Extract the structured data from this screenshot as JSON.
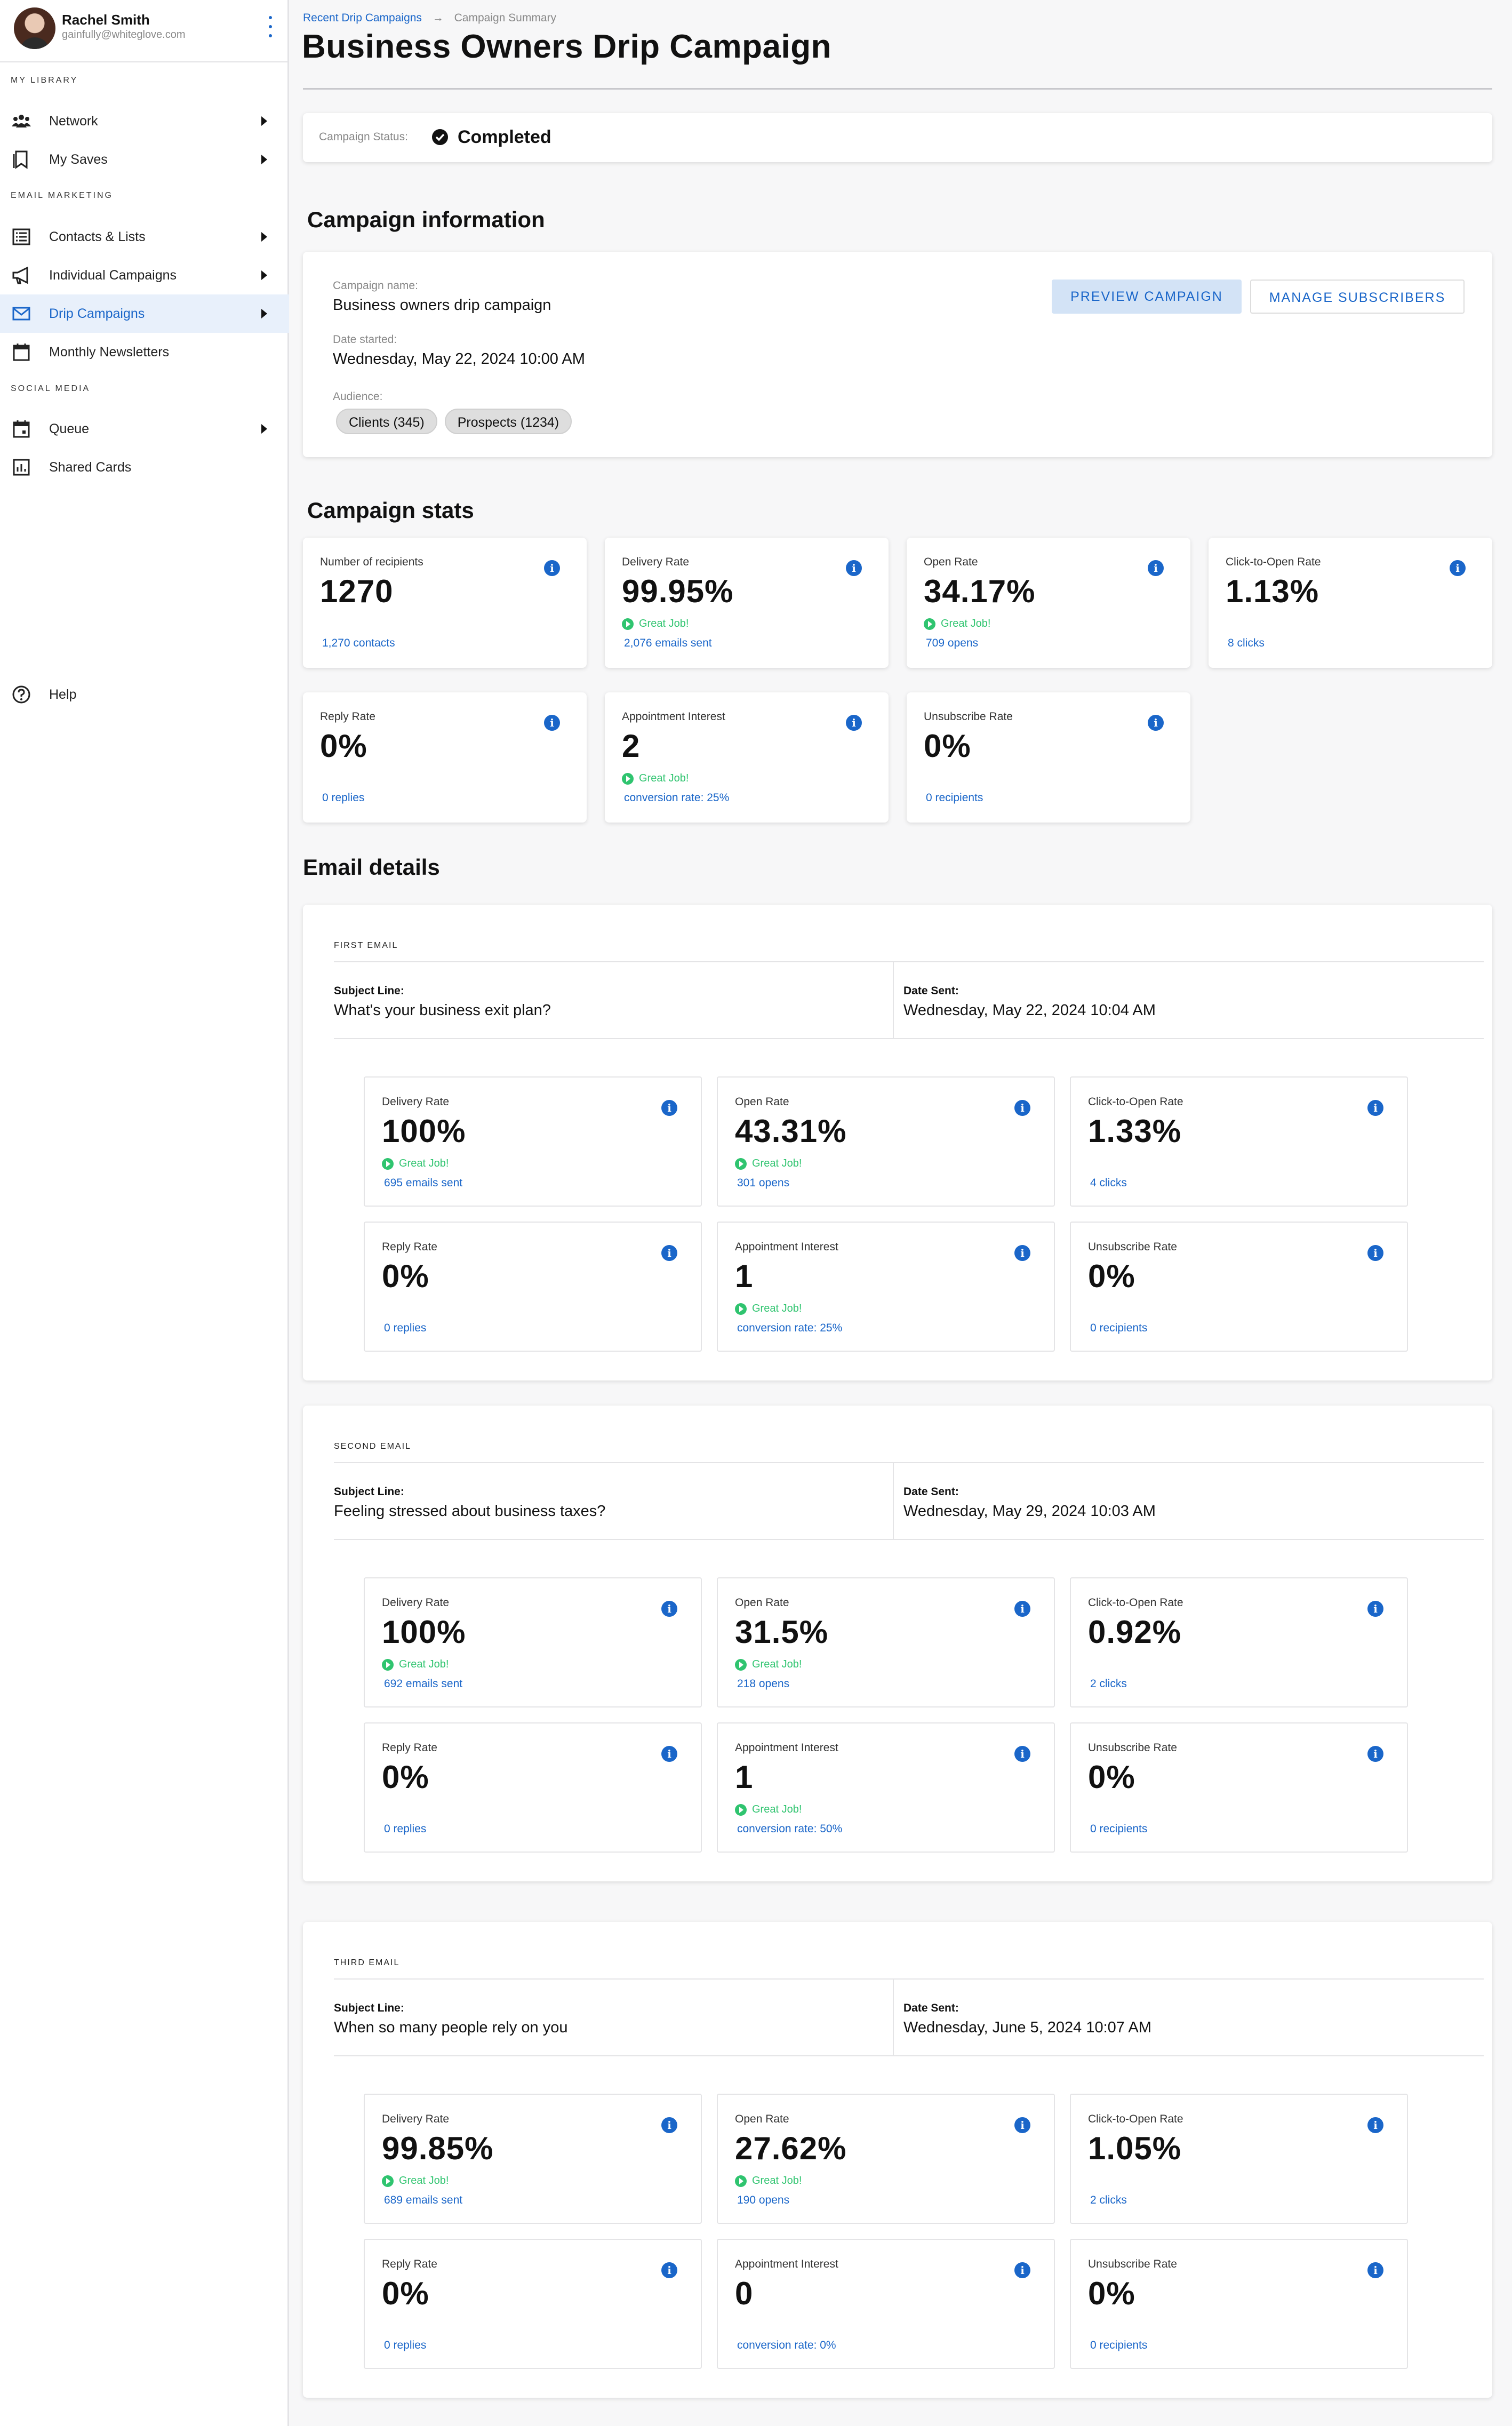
{
  "user": {
    "name": "Rachel Smith",
    "email": "gainfully@whiteglove.com"
  },
  "sidebar": {
    "sections": [
      "MY LIBRARY",
      "EMAIL MARKETING",
      "SOCIAL MEDIA"
    ],
    "items": [
      {
        "label": "Network",
        "icon": "network-icon",
        "has_arrow": true
      },
      {
        "label": "My Saves",
        "icon": "bookmark-icon",
        "has_arrow": true
      },
      {
        "label": "Contacts & Lists",
        "icon": "list-icon",
        "has_arrow": true
      },
      {
        "label": "Individual Campaigns",
        "icon": "megaphone-icon",
        "has_arrow": true
      },
      {
        "label": "Drip Campaigns",
        "icon": "mail-icon",
        "has_arrow": true,
        "active": true
      },
      {
        "label": "Monthly Newsletters",
        "icon": "calendar-icon",
        "has_arrow": false
      },
      {
        "label": "Queue",
        "icon": "calendar-icon",
        "has_arrow": true
      },
      {
        "label": "Shared Cards",
        "icon": "chart-icon",
        "has_arrow": false
      }
    ],
    "help": "Help"
  },
  "breadcrumb": {
    "parent": "Recent Drip Campaigns",
    "separator": "→",
    "current": "Campaign Summary"
  },
  "title": "Business Owners Drip Campaign",
  "status": {
    "label": "Campaign Status:",
    "value": "Completed"
  },
  "info_section": {
    "heading": "Campaign information",
    "name_label": "Campaign name:",
    "name": "Business owners drip campaign",
    "date_label": "Date started:",
    "date": "Wednesday, May 22, 2024 10:00 AM",
    "audience_label": "Audience:",
    "audience": [
      "Clients (345)",
      "Prospects (1234)"
    ],
    "preview_button": "PREVIEW CAMPAIGN",
    "manage_button": "MANAGE SUBSCRIBERS"
  },
  "stats_section": {
    "heading": "Campaign stats",
    "cards": [
      {
        "label": "Number of recipients",
        "value": "1270",
        "great": "",
        "link": "1,270 contacts"
      },
      {
        "label": "Delivery Rate",
        "value": "99.95%",
        "great": "Great Job!",
        "link": "2,076 emails sent"
      },
      {
        "label": "Open Rate",
        "value": "34.17%",
        "great": "Great Job!",
        "link": "709 opens"
      },
      {
        "label": "Click-to-Open Rate",
        "value": "1.13%",
        "great": "",
        "link": "8 clicks"
      },
      {
        "label": "Reply Rate",
        "value": "0%",
        "great": "",
        "link": "0 replies"
      },
      {
        "label": "Appointment Interest",
        "value": "2",
        "great": "Great Job!",
        "link": "conversion rate: 25%"
      },
      {
        "label": "Unsubscribe Rate",
        "value": "0%",
        "great": "",
        "link": "0 recipients"
      }
    ]
  },
  "email_details": {
    "heading": "Email details",
    "subject_label": "Subject Line:",
    "date_label": "Date Sent:",
    "emails": [
      {
        "title": "FIRST EMAIL",
        "subject": "What's your business exit plan?",
        "date": "Wednesday, May 22, 2024 10:04 AM",
        "stats": [
          {
            "label": "Delivery Rate",
            "value": "100%",
            "great": "Great Job!",
            "link": "695 emails sent"
          },
          {
            "label": "Open Rate",
            "value": "43.31%",
            "great": "Great Job!",
            "link": "301 opens"
          },
          {
            "label": "Click-to-Open Rate",
            "value": "1.33%",
            "great": "",
            "link": "4 clicks"
          },
          {
            "label": "Reply Rate",
            "value": "0%",
            "great": "",
            "link": "0 replies"
          },
          {
            "label": "Appointment Interest",
            "value": "1",
            "great": "Great Job!",
            "link": "conversion rate: 25%"
          },
          {
            "label": "Unsubscribe Rate",
            "value": "0%",
            "great": "",
            "link": "0 recipients"
          }
        ]
      },
      {
        "title": "SECOND EMAIL",
        "subject": "Feeling stressed about business taxes?",
        "date": "Wednesday, May 29, 2024 10:03 AM",
        "stats": [
          {
            "label": "Delivery Rate",
            "value": "100%",
            "great": "Great Job!",
            "link": "692 emails sent"
          },
          {
            "label": "Open Rate",
            "value": "31.5%",
            "great": "Great Job!",
            "link": "218 opens"
          },
          {
            "label": "Click-to-Open Rate",
            "value": "0.92%",
            "great": "",
            "link": "2 clicks"
          },
          {
            "label": "Reply Rate",
            "value": "0%",
            "great": "",
            "link": "0 replies"
          },
          {
            "label": "Appointment Interest",
            "value": "1",
            "great": "Great Job!",
            "link": "conversion rate: 50%"
          },
          {
            "label": "Unsubscribe Rate",
            "value": "0%",
            "great": "",
            "link": "0 recipients"
          }
        ]
      },
      {
        "title": "THIRD EMAIL",
        "subject": "When so many people rely on you",
        "date": "Wednesday, June 5, 2024 10:07 AM",
        "stats": [
          {
            "label": "Delivery Rate",
            "value": "99.85%",
            "great": "Great Job!",
            "link": "689 emails sent"
          },
          {
            "label": "Open Rate",
            "value": "27.62%",
            "great": "Great Job!",
            "link": "190 opens"
          },
          {
            "label": "Click-to-Open Rate",
            "value": "1.05%",
            "great": "",
            "link": "2 clicks"
          },
          {
            "label": "Reply Rate",
            "value": "0%",
            "great": "",
            "link": "0 replies"
          },
          {
            "label": "Appointment Interest",
            "value": "0",
            "great": "",
            "link": "conversion rate: 0%"
          },
          {
            "label": "Unsubscribe Rate",
            "value": "0%",
            "great": "",
            "link": "0 recipients"
          }
        ]
      }
    ]
  },
  "colors": {
    "accent": "#1a66c9",
    "success": "#2fc46f",
    "active_bg": "#e8f0fb"
  }
}
